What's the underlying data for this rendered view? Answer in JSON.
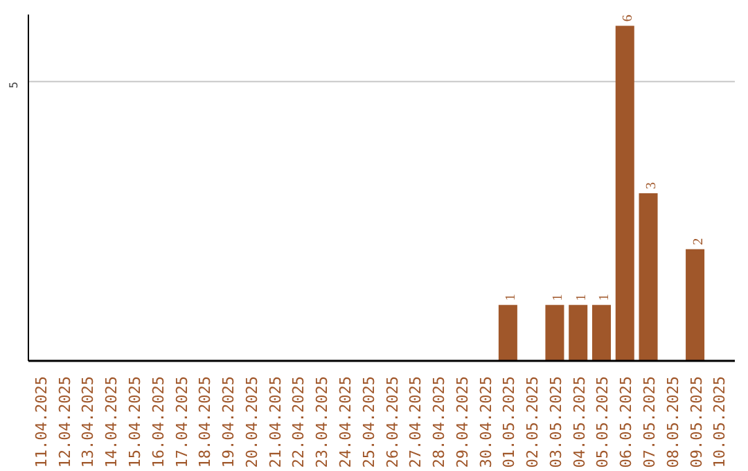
{
  "chart_data": {
    "type": "bar",
    "ylim": [
      0,
      6.2
    ],
    "categories": [
      "11.04.2025",
      "12.04.2025",
      "13.04.2025",
      "14.04.2025",
      "15.04.2025",
      "16.04.2025",
      "17.04.2025",
      "18.04.2025",
      "19.04.2025",
      "20.04.2025",
      "21.04.2025",
      "22.04.2025",
      "23.04.2025",
      "24.04.2025",
      "25.04.2025",
      "26.04.2025",
      "27.04.2025",
      "28.04.2025",
      "29.04.2025",
      "30.04.2025",
      "01.05.2025",
      "02.05.2025",
      "03.05.2025",
      "04.05.2025",
      "05.05.2025",
      "06.05.2025",
      "07.05.2025",
      "08.05.2025",
      "09.05.2025",
      "10.05.2025"
    ],
    "values": [
      null,
      null,
      null,
      null,
      null,
      null,
      null,
      null,
      null,
      null,
      null,
      null,
      null,
      null,
      null,
      null,
      null,
      null,
      null,
      null,
      1,
      null,
      1,
      1,
      1,
      6,
      3,
      null,
      2,
      null
    ],
    "value_labels": [
      null,
      null,
      null,
      null,
      null,
      null,
      null,
      null,
      null,
      null,
      null,
      null,
      null,
      null,
      null,
      null,
      null,
      null,
      null,
      null,
      "1",
      null,
      "1",
      "1",
      "1",
      "6",
      "3",
      null,
      "2",
      null
    ],
    "color": "#a0572a",
    "ref_lines": [
      {
        "axis": "y",
        "value": 5,
        "label": "5",
        "color": "#c8c8c8"
      }
    ]
  }
}
